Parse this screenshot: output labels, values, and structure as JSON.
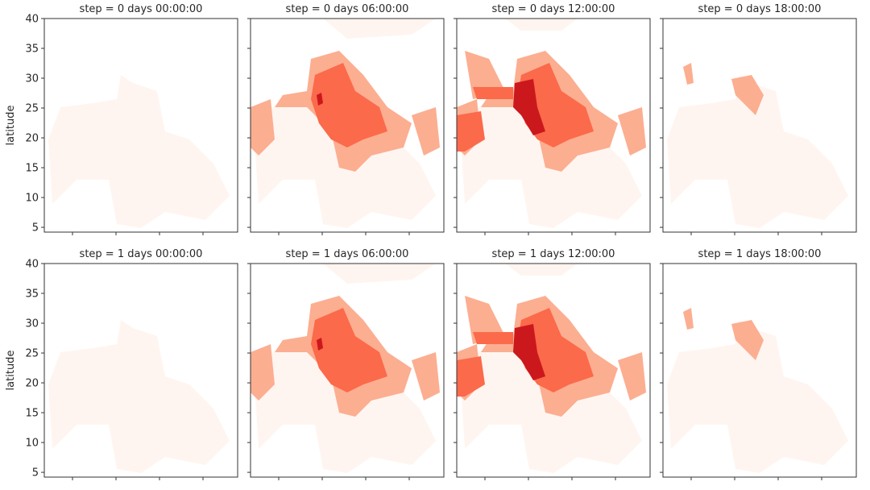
{
  "chart_data": {
    "type": "heatmap",
    "layout": "facet grid, 2 rows x 4 columns",
    "colormap": "Reds",
    "colors": [
      "#fff5f0",
      "#fcae91",
      "#fb6a4a",
      "#cb181d"
    ],
    "ylabel": "latitude",
    "ylim": [
      4.2,
      40
    ],
    "yticks": [
      "5",
      "10",
      "15",
      "20",
      "25",
      "30",
      "35",
      "40"
    ],
    "x_tick_labels_shown": false,
    "grid": false,
    "panels": [
      {
        "title": "step = 0 days 00:00:00",
        "intensity": "very low"
      },
      {
        "title": "step = 0 days 06:00:00",
        "intensity": "high"
      },
      {
        "title": "step = 0 days 12:00:00",
        "intensity": "very high"
      },
      {
        "title": "step = 0 days 18:00:00",
        "intensity": "low"
      },
      {
        "title": "step = 1 days 00:00:00",
        "intensity": "very low"
      },
      {
        "title": "step = 1 days 06:00:00",
        "intensity": "high"
      },
      {
        "title": "step = 1 days 12:00:00",
        "intensity": "very high"
      },
      {
        "title": "step = 1 days 18:00:00",
        "intensity": "low"
      }
    ]
  }
}
